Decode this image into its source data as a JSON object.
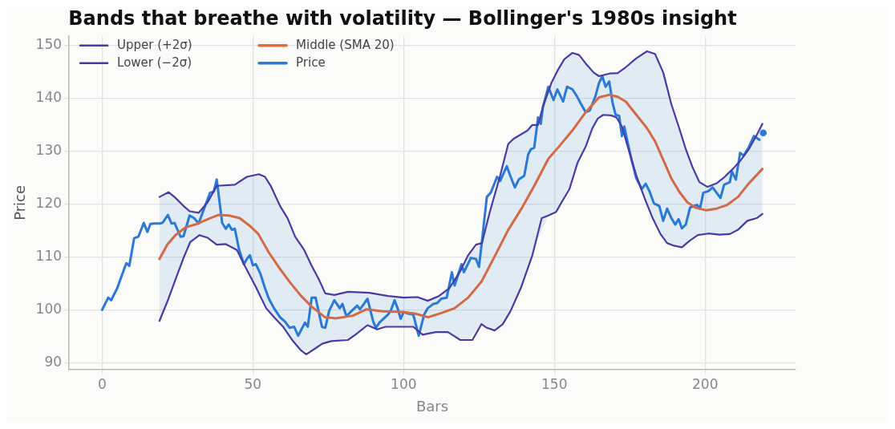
{
  "chart_data": {
    "type": "line",
    "title": "Bands that breathe with volatility — Bollinger's 1980s insight",
    "xlabel": "Bars",
    "ylabel": "Price",
    "xlim": [
      -11,
      230
    ],
    "ylim": [
      88.8,
      151.8
    ],
    "xticks": [
      0,
      50,
      100,
      150,
      200
    ],
    "yticks": [
      90,
      100,
      110,
      120,
      130,
      140,
      150
    ],
    "grid": true,
    "legend": "top left",
    "marker": "none",
    "line_style": "solid",
    "series": [
      {
        "name": "Upper (+2σ)",
        "color": "#4b37a3",
        "x": [
          19,
          22,
          24,
          27,
          29,
          32,
          35,
          38,
          44,
          48,
          52,
          54,
          56,
          59,
          61.5,
          64,
          67,
          69.5,
          72,
          74,
          77,
          81.5,
          88.6,
          94.8,
          100,
          104.6,
          108,
          111.7,
          115.2,
          118.8,
          121.4,
          124,
          126,
          128.5,
          132,
          134.7,
          136.5,
          141,
          142.7,
          144.6,
          146.2,
          149,
          151,
          153.3,
          156,
          158.2,
          160.4,
          163,
          164.8,
          168.3,
          171,
          173.7,
          177.2,
          180.7,
          183.4,
          186.1,
          188.8,
          191.4,
          193.6,
          195.9,
          198.1,
          200.8,
          203.9,
          206.5,
          209.2,
          211.9,
          214.5,
          217.2,
          219
        ],
        "values": [
          121.4,
          122.3,
          121.4,
          119.7,
          118.7,
          118.4,
          120.4,
          123.5,
          123.7,
          125.2,
          125.7,
          125.2,
          123.4,
          119.7,
          117.4,
          113.9,
          111.4,
          108.4,
          105.7,
          103.2,
          102.9,
          103.5,
          103.3,
          102.7,
          102.4,
          102.5,
          101.8,
          102.7,
          104.2,
          107.4,
          110.4,
          112.4,
          112.7,
          118.4,
          125.4,
          131.4,
          132.4,
          133.9,
          135,
          135,
          138.4,
          142.9,
          145.2,
          147.4,
          148.6,
          148.2,
          146.6,
          144.9,
          144.2,
          144.7,
          144.8,
          145.9,
          147.6,
          148.9,
          148.4,
          144.9,
          138.9,
          134.4,
          130.4,
          126.9,
          124.2,
          123.3,
          124,
          125.2,
          126.7,
          128.4,
          130.4,
          133.2,
          135.2
        ]
      },
      {
        "name": "Lower (−2σ)",
        "color": "#4b37a3",
        "x": [
          19,
          22,
          24.7,
          27,
          29.2,
          32.3,
          35,
          38,
          41,
          44.7,
          47.3,
          51,
          54.4,
          57,
          60,
          63.3,
          66,
          67.7,
          70.4,
          73,
          76,
          81.5,
          84,
          88,
          91.2,
          94,
          99,
          103.2,
          106.3,
          110.7,
          114.7,
          118.8,
          122.8,
          125.8,
          127.6,
          130.2,
          132.9,
          135.5,
          139,
          142.7,
          145.8,
          148,
          150.6,
          152.4,
          155,
          157.7,
          160.4,
          162.6,
          164.4,
          166.2,
          168.8,
          170.6,
          172.4,
          174.6,
          177.2,
          179.9,
          182.6,
          185.2,
          187.4,
          189.7,
          192.3,
          195,
          197.6,
          201.1,
          204.7,
          208.2,
          210.9,
          214,
          217.1,
          219
        ],
        "values": [
          98,
          102.2,
          106.4,
          109.9,
          112.9,
          114.2,
          113.7,
          112.4,
          112.5,
          111.4,
          108.4,
          104.4,
          100.4,
          98.7,
          96.9,
          94.2,
          92.4,
          91.7,
          92.7,
          93.7,
          94.2,
          94.4,
          95.4,
          97.2,
          96.4,
          96.9,
          96.9,
          96.9,
          95.4,
          95.9,
          95.9,
          94.4,
          94.4,
          97.4,
          96.7,
          96.2,
          97.4,
          99.9,
          104.4,
          110.4,
          117.4,
          117.9,
          118.6,
          120.4,
          122.9,
          127.9,
          130.9,
          134.4,
          136.2,
          136.9,
          136.8,
          136.4,
          134.7,
          130.4,
          125.4,
          121.2,
          117.4,
          114.4,
          112.7,
          112.2,
          111.9,
          113.2,
          114.2,
          114.5,
          114.3,
          114.4,
          115.2,
          116.9,
          117.4,
          118.2
        ]
      },
      {
        "name": "Middle (SMA 20)",
        "color": "#ec6733",
        "x": [
          19,
          21.6,
          24.3,
          27.8,
          31.4,
          35,
          38.5,
          42,
          45.6,
          49.1,
          51.8,
          55.3,
          58.9,
          62.4,
          66,
          69.5,
          73.9,
          77.5,
          83.2,
          87.7,
          93,
          99.2,
          103.7,
          108.1,
          112.5,
          116.9,
          121.4,
          125.8,
          130.2,
          134.7,
          139.1,
          143.5,
          148,
          151.5,
          155.9,
          160.4,
          164.8,
          168.3,
          171,
          173.7,
          177.2,
          180.7,
          183.4,
          186.1,
          188.8,
          191.4,
          194.1,
          196.7,
          200.3,
          203.8,
          207.3,
          210.9,
          214.4,
          219
        ],
        "values": [
          109.7,
          112.4,
          114.2,
          115.7,
          116.3,
          117.2,
          118,
          117.9,
          117.4,
          115.9,
          114.4,
          110.9,
          107.9,
          105.2,
          102.7,
          100.7,
          98.7,
          98.5,
          99,
          100.2,
          99.8,
          99.7,
          99.4,
          98.7,
          99.5,
          100.4,
          102.4,
          105.4,
          110.2,
          115.2,
          119.2,
          123.7,
          128.6,
          130.9,
          133.9,
          137.4,
          140.2,
          140.7,
          140.3,
          139.4,
          136.9,
          134.4,
          131.9,
          128.4,
          124.9,
          122.4,
          120.4,
          119.4,
          118.9,
          119.2,
          119.9,
          121.4,
          123.9,
          126.7
        ],
        "lower": [
          98,
          101.6,
          105.8,
          111,
          113.8,
          113.7,
          112.4,
          112.2,
          110.4,
          106.5,
          103.5,
          99.8,
          97.6,
          94.9,
          92.4,
          92.4,
          93.9,
          94.3,
          95.1,
          97.1,
          96.7,
          96.9,
          96.7,
          95.6,
          95.9,
          95.1,
          94.4,
          97.4,
          96.2,
          99.1,
          104.6,
          112.2,
          117.9,
          119.5,
          124.6,
          130.9,
          136.4,
          136.8,
          136,
          132.2,
          125.4,
          120.1,
          116.5,
          113.7,
          112.4,
          112,
          112.8,
          113.9,
          114.4,
          114.4,
          114.4,
          115.2,
          117,
          118.2
        ],
        "upper": [
          121.4,
          122.2,
          121.2,
          119.3,
          118.5,
          120.4,
          123.5,
          123.6,
          124.3,
          125.3,
          125.7,
          124,
          119.8,
          116.1,
          112.2,
          108.4,
          103.3,
          103,
          103.5,
          103.3,
          102.9,
          102.5,
          102.5,
          101.8,
          103,
          105.7,
          110.4,
          112.7,
          121.8,
          131.4,
          133.3,
          135,
          141.3,
          145.7,
          148.6,
          146.6,
          144.2,
          144.7,
          144.8,
          145.9,
          147.6,
          148.9,
          148.4,
          144.9,
          138.9,
          134.4,
          129.6,
          125.9,
          123.5,
          124,
          125.6,
          127.8,
          130.3,
          135.2
        ]
      },
      {
        "name": "Price",
        "color": "#2a79d7",
        "x": [
          0,
          2,
          3,
          5,
          6.6,
          8,
          9,
          10.6,
          12,
          13.8,
          15,
          16,
          17,
          19,
          20,
          21.8,
          23,
          24,
          26,
          27,
          29,
          30.5,
          32,
          33.6,
          35.8,
          37,
          38,
          39.8,
          41,
          42,
          43,
          44,
          45.4,
          47,
          48,
          49,
          50,
          51,
          52.5,
          54,
          55.3,
          57,
          59,
          60.6,
          62.2,
          63.7,
          65,
          67.3,
          68.2,
          69.5,
          70.8,
          72.9,
          74,
          75.3,
          77,
          78.8,
          79.7,
          81,
          82.8,
          84.6,
          85.5,
          86.8,
          88,
          89.9,
          90.8,
          92,
          94.8,
          95.7,
          97,
          98,
          99,
          100,
          101.4,
          103.2,
          105,
          106.8,
          108,
          109.8,
          111.2,
          112.5,
          114.3,
          116,
          116.9,
          119.2,
          120,
          122.3,
          124,
          125,
          126.2,
          127.6,
          128.9,
          131,
          132,
          134.2,
          135.5,
          136.9,
          138.2,
          140,
          141.3,
          142.2,
          143.3,
          144.6,
          145.5,
          146.2,
          148,
          149.7,
          151,
          152.9,
          154.2,
          156,
          157.5,
          158.6,
          160.4,
          161.7,
          163.5,
          164.8,
          165.9,
          167,
          168.2,
          169.3,
          170.3,
          171.5,
          172.4,
          173.2,
          174.6,
          175.6,
          177.2,
          179,
          180.3,
          181.6,
          183,
          184.8,
          186.1,
          187.4,
          188.8,
          190.1,
          191.2,
          192.3,
          193.6,
          195,
          196.3,
          197.4,
          198.3,
          199.4,
          201.1,
          202.5,
          203.8,
          205.1,
          206.3,
          208.2,
          208.9,
          210.2,
          211.6,
          212.8,
          214.4,
          216.2,
          218
        ],
        "values": [
          100.1,
          102.4,
          101.9,
          104.2,
          106.7,
          108.9,
          108.4,
          113.6,
          113.9,
          116.5,
          114.8,
          116.3,
          116.4,
          116.4,
          116.5,
          118,
          116.4,
          116.5,
          113.9,
          114,
          117.9,
          117.4,
          116.4,
          118.9,
          122.2,
          122.4,
          124.7,
          116.5,
          115.4,
          116.2,
          115.2,
          115.4,
          111.5,
          108.7,
          109.7,
          110.4,
          108.5,
          108.7,
          106.9,
          104.2,
          102.2,
          100.4,
          98.7,
          97.9,
          96.7,
          96.9,
          95.2,
          97.7,
          96.9,
          102.4,
          102.4,
          96.9,
          96.7,
          99.9,
          101.9,
          100.4,
          101.2,
          98.9,
          99.9,
          100.9,
          100.2,
          101.2,
          102.2,
          97.9,
          96.7,
          97.7,
          99.2,
          99.9,
          101.9,
          100.4,
          98.4,
          99.7,
          99.4,
          99.2,
          95.2,
          99.2,
          100.4,
          101.2,
          101.4,
          102.2,
          102.4,
          107.2,
          104.7,
          108.7,
          107.2,
          109.9,
          109.7,
          108.2,
          114.2,
          121.4,
          122.2,
          125.2,
          124.4,
          127.2,
          125.2,
          123.2,
          124.7,
          125.4,
          129.4,
          130.4,
          130.7,
          136.4,
          135.2,
          138.4,
          142.2,
          139.7,
          141.7,
          139.4,
          142.2,
          141.7,
          140.4,
          139.2,
          137.4,
          137.7,
          140.2,
          142.9,
          144.2,
          142.2,
          143.2,
          139.2,
          136.9,
          136.7,
          132.9,
          134.7,
          130.9,
          128.4,
          124.9,
          122.9,
          123.9,
          122.4,
          120.2,
          119.7,
          116.9,
          119.2,
          117.4,
          116.2,
          117.2,
          115.5,
          116.2,
          119.4,
          119.7,
          119.9,
          119.2,
          122.2,
          122.5,
          123.2,
          122.2,
          121.2,
          123.7,
          124.2,
          126.2,
          124.7,
          129.7,
          129.2,
          130.7,
          132.9,
          132.2
        ]
      },
      {
        "type": "scatter",
        "marker": "circle",
        "color": "#2a79d7",
        "x": [
          219.3
        ],
        "values": [
          133.5
        ]
      }
    ]
  }
}
